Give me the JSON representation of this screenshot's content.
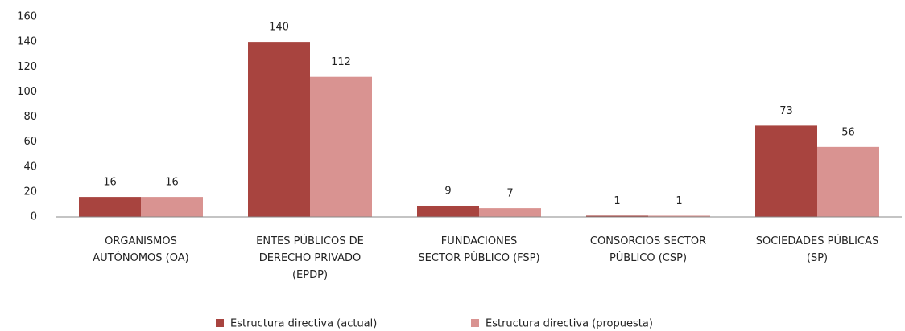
{
  "chart_data": {
    "type": "bar",
    "categories": [
      "ORGANISMOS\nAUTÓNOMOS (OA)",
      "ENTES PÚBLICOS DE\nDERECHO PRIVADO\n(EPDP)",
      "FUNDACIONES\nSECTOR PÚBLICO (FSP)",
      "CONSORCIOS SECTOR\nPÚBLICO (CSP)",
      "SOCIEDADES PÚBLICAS\n(SP)"
    ],
    "series": [
      {
        "name": "Estructura directiva (actual)",
        "color": "#a8443f",
        "values": [
          16,
          140,
          9,
          1,
          73
        ]
      },
      {
        "name": "Estructura directiva (propuesta)",
        "color": "#d99391",
        "values": [
          16,
          112,
          7,
          1,
          56
        ]
      }
    ],
    "ylim": [
      0,
      160
    ],
    "yticks": [
      0,
      20,
      40,
      60,
      80,
      100,
      120,
      140,
      160
    ],
    "grid": false,
    "legend": "bottom"
  }
}
